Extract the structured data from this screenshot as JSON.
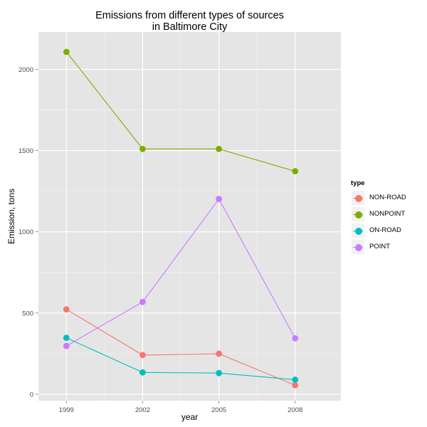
{
  "chart_data": {
    "type": "line",
    "title": [
      "Emissions from different types of sources",
      "in Baltimore City"
    ],
    "xlabel": "year",
    "ylabel": "Emission, tons",
    "x": [
      1999,
      2002,
      2005,
      2008
    ],
    "x_tick_labels": [
      "1999",
      "2002",
      "2005",
      "2008"
    ],
    "y_ticks": [
      0,
      500,
      1000,
      1500,
      2000
    ],
    "y_tick_labels": [
      "0",
      "500",
      "1000",
      "1500",
      "2000"
    ],
    "xlim": [
      1997.9,
      2009.8
    ],
    "ylim": [
      -40,
      2230
    ],
    "grid": true,
    "legend_title": "type",
    "legend_position": "right",
    "series": [
      {
        "name": "NON-ROAD",
        "color": "#F8766D",
        "values": [
          522,
          241,
          249,
          55
        ]
      },
      {
        "name": "NONPOINT",
        "color": "#7CAE00",
        "values": [
          2108,
          1510,
          1510,
          1373
        ]
      },
      {
        "name": "ON-ROAD",
        "color": "#00BFC4",
        "values": [
          347,
          134,
          130,
          89
        ]
      },
      {
        "name": "POINT",
        "color": "#C77CFF",
        "values": [
          297,
          568,
          1202,
          344
        ]
      }
    ]
  }
}
